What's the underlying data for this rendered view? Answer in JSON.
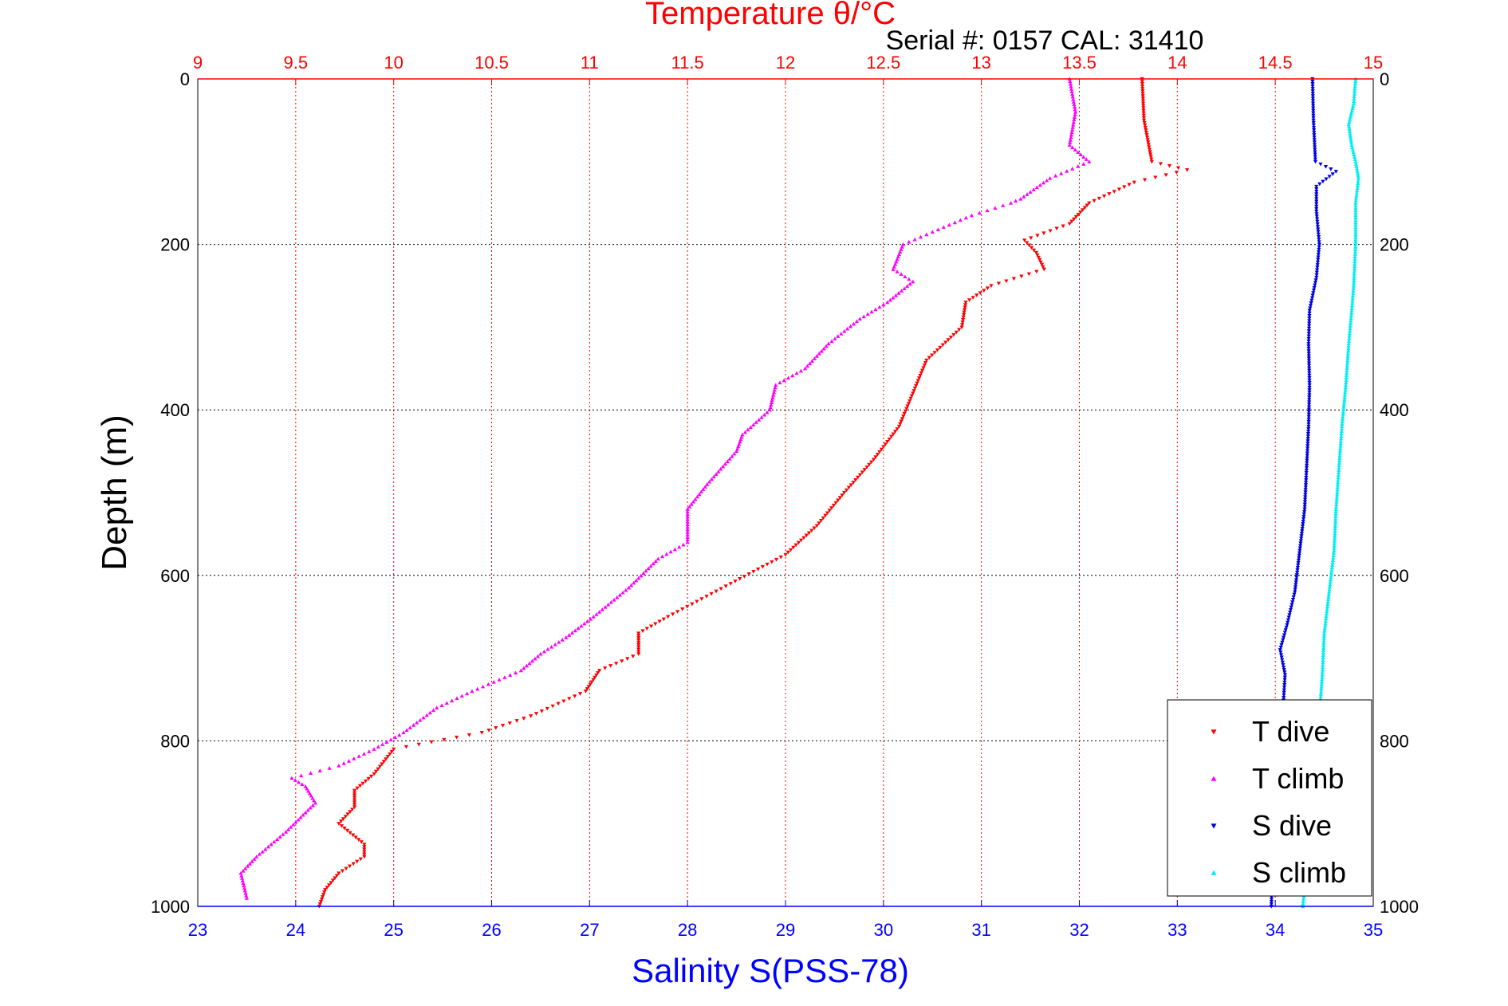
{
  "chart_data": {
    "type": "scatter",
    "title": "Temperature θ/°C",
    "subtitle": "Serial #: 0157  CAL: 31410",
    "xlabel": "Salinity S(PSS-78)",
    "x2label": "Temperature θ/°C",
    "ylabel": "Depth (m)",
    "xlim": [
      23,
      35
    ],
    "x2lim": [
      9,
      15
    ],
    "ylim": [
      0,
      1000
    ],
    "y_reversed": true,
    "x_ticks": [
      "23",
      "24",
      "25",
      "26",
      "27",
      "28",
      "29",
      "30",
      "31",
      "32",
      "33",
      "34",
      "35"
    ],
    "x2_ticks": [
      "9",
      "9.5",
      "10",
      "10.5",
      "11",
      "11.5",
      "12",
      "12.5",
      "13",
      "13.5",
      "14",
      "14.5",
      "15"
    ],
    "y_ticks": [
      "0",
      "200",
      "400",
      "600",
      "800",
      "1000"
    ],
    "grid": true,
    "legend_position": "bottom-right",
    "colors": {
      "t_dive": "#ff0000",
      "t_climb": "#ff00ff",
      "s_dive": "#0000dd",
      "s_climb": "#00eeee",
      "top_axis": "#ff0000",
      "bottom_axis": "#0000ff"
    },
    "series": [
      {
        "name": "T dive",
        "axis": "temperature",
        "color": "#ff0000",
        "marker": "triangle-down",
        "points": [
          [
            13.82,
            0
          ],
          [
            13.83,
            50
          ],
          [
            13.87,
            100
          ],
          [
            14.05,
            110
          ],
          [
            13.78,
            125
          ],
          [
            13.55,
            150
          ],
          [
            13.45,
            175
          ],
          [
            13.22,
            195
          ],
          [
            13.28,
            210
          ],
          [
            13.32,
            230
          ],
          [
            13.05,
            250
          ],
          [
            12.92,
            270
          ],
          [
            12.9,
            300
          ],
          [
            12.72,
            340
          ],
          [
            12.65,
            380
          ],
          [
            12.58,
            420
          ],
          [
            12.45,
            460
          ],
          [
            12.3,
            500
          ],
          [
            12.16,
            540
          ],
          [
            12.0,
            575
          ],
          [
            11.72,
            610
          ],
          [
            11.4,
            650
          ],
          [
            11.25,
            670
          ],
          [
            11.25,
            695
          ],
          [
            11.05,
            715
          ],
          [
            10.98,
            740
          ],
          [
            10.7,
            770
          ],
          [
            10.45,
            790
          ],
          [
            10.0,
            810
          ],
          [
            9.9,
            840
          ],
          [
            9.8,
            860
          ],
          [
            9.8,
            880
          ],
          [
            9.72,
            900
          ],
          [
            9.85,
            925
          ],
          [
            9.85,
            940
          ],
          [
            9.72,
            960
          ],
          [
            9.65,
            980
          ],
          [
            9.62,
            1000
          ]
        ]
      },
      {
        "name": "T climb",
        "axis": "temperature",
        "color": "#ff00ff",
        "marker": "triangle-up",
        "points": [
          [
            13.45,
            0
          ],
          [
            13.48,
            40
          ],
          [
            13.45,
            80
          ],
          [
            13.55,
            100
          ],
          [
            13.35,
            120
          ],
          [
            13.2,
            145
          ],
          [
            13.15,
            150
          ],
          [
            12.95,
            165
          ],
          [
            12.75,
            185
          ],
          [
            12.6,
            200
          ],
          [
            12.55,
            230
          ],
          [
            12.65,
            245
          ],
          [
            12.52,
            270
          ],
          [
            12.38,
            290
          ],
          [
            12.22,
            320
          ],
          [
            12.1,
            350
          ],
          [
            11.95,
            370
          ],
          [
            11.92,
            400
          ],
          [
            11.78,
            430
          ],
          [
            11.75,
            450
          ],
          [
            11.6,
            490
          ],
          [
            11.5,
            520
          ],
          [
            11.5,
            560
          ],
          [
            11.35,
            580
          ],
          [
            11.2,
            615
          ],
          [
            11.02,
            650
          ],
          [
            10.88,
            675
          ],
          [
            10.75,
            695
          ],
          [
            10.65,
            715
          ],
          [
            10.4,
            740
          ],
          [
            10.22,
            760
          ],
          [
            10.05,
            790
          ],
          [
            9.9,
            810
          ],
          [
            9.72,
            830
          ],
          [
            9.48,
            845
          ],
          [
            9.55,
            855
          ],
          [
            9.6,
            875
          ],
          [
            9.45,
            910
          ],
          [
            9.3,
            940
          ],
          [
            9.22,
            960
          ],
          [
            9.25,
            990
          ]
        ]
      },
      {
        "name": "S dive",
        "axis": "salinity",
        "color": "#0000dd",
        "marker": "triangle-down",
        "points": [
          [
            34.38,
            0
          ],
          [
            34.39,
            50
          ],
          [
            34.41,
            100
          ],
          [
            34.62,
            112
          ],
          [
            34.42,
            130
          ],
          [
            34.42,
            160
          ],
          [
            34.45,
            200
          ],
          [
            34.42,
            240
          ],
          [
            34.35,
            280
          ],
          [
            34.34,
            320
          ],
          [
            34.35,
            370
          ],
          [
            34.34,
            420
          ],
          [
            34.32,
            470
          ],
          [
            34.3,
            520
          ],
          [
            34.25,
            570
          ],
          [
            34.2,
            620
          ],
          [
            34.12,
            660
          ],
          [
            34.05,
            690
          ],
          [
            34.1,
            720
          ],
          [
            34.08,
            760
          ],
          [
            34.02,
            800
          ],
          [
            34.0,
            850
          ],
          [
            33.98,
            900
          ],
          [
            33.97,
            950
          ],
          [
            33.96,
            1000
          ]
        ]
      },
      {
        "name": "S climb",
        "axis": "salinity",
        "color": "#00eeee",
        "marker": "triangle-up",
        "points": [
          [
            34.82,
            0
          ],
          [
            34.8,
            30
          ],
          [
            34.75,
            55
          ],
          [
            34.78,
            80
          ],
          [
            34.82,
            100
          ],
          [
            34.85,
            120
          ],
          [
            34.82,
            150
          ],
          [
            34.82,
            200
          ],
          [
            34.8,
            250
          ],
          [
            34.78,
            280
          ],
          [
            34.75,
            320
          ],
          [
            34.72,
            370
          ],
          [
            34.68,
            420
          ],
          [
            34.65,
            470
          ],
          [
            34.62,
            520
          ],
          [
            34.6,
            570
          ],
          [
            34.55,
            620
          ],
          [
            34.5,
            670
          ],
          [
            34.48,
            720
          ],
          [
            34.45,
            770
          ],
          [
            34.42,
            820
          ],
          [
            34.4,
            870
          ],
          [
            34.38,
            920
          ],
          [
            34.32,
            960
          ],
          [
            34.28,
            1000
          ]
        ]
      }
    ]
  }
}
